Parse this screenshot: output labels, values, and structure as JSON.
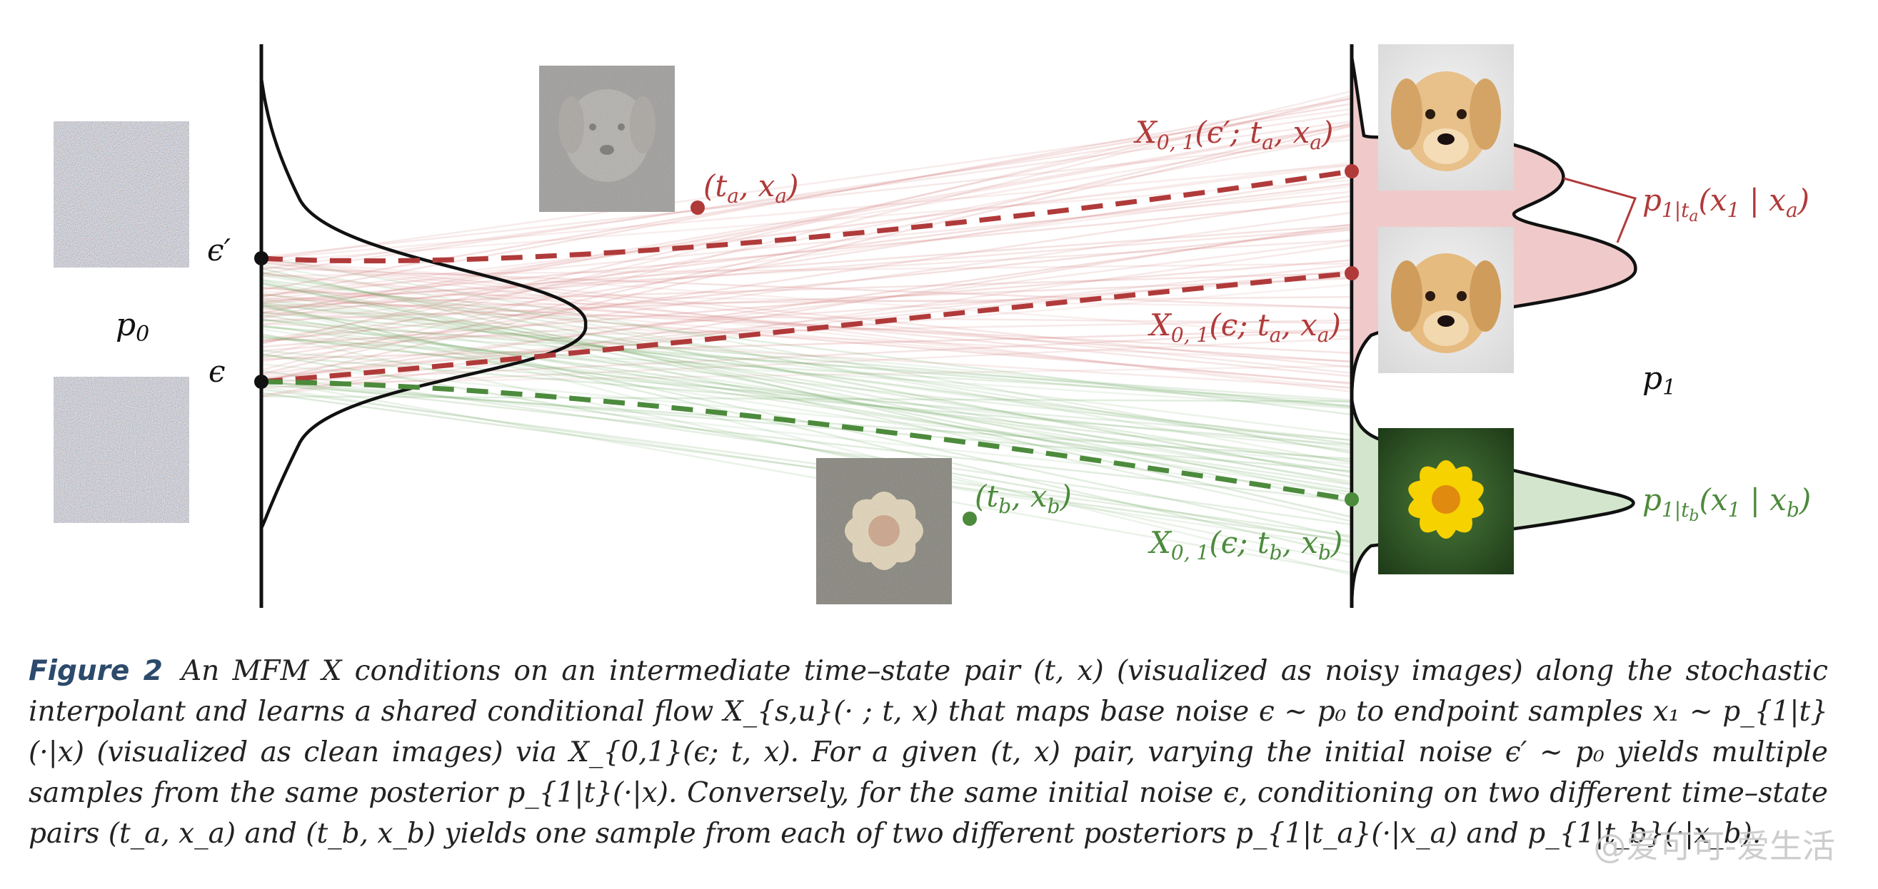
{
  "figure": {
    "labels": {
      "p0": "p",
      "p0_sub": "0",
      "p1": "p",
      "p1_sub": "1",
      "eps_prime": "ϵ′",
      "eps": "ϵ",
      "ta_xa": "(t",
      "tb_xb": "(t",
      "x_upper": "X",
      "x_middle": "X",
      "x_lower": "X",
      "posterior_a": "p",
      "posterior_b": "p"
    },
    "label_texts": {
      "ta_point": [
        "(t",
        "a",
        ", x",
        "a",
        ")"
      ],
      "tb_point": [
        "(t",
        "b",
        ", x",
        "b",
        ")"
      ],
      "x_upper": [
        "X",
        "0, 1",
        "(ϵ′; t",
        "a",
        ", x",
        "a",
        ")"
      ],
      "x_middle": [
        "X",
        "0, 1",
        "(ϵ; t",
        "a",
        ", x",
        "a",
        ")"
      ],
      "x_lower": [
        "X",
        "0, 1",
        "(ϵ; t",
        "b",
        ", x",
        "b",
        ")"
      ],
      "posterior_a": [
        "p",
        "1|t",
        "a",
        "(x",
        "1",
        " | x",
        "a",
        ")"
      ],
      "posterior_b": [
        "p",
        "1|t",
        "b",
        "(x",
        "1",
        " | x",
        "b",
        ")"
      ]
    },
    "colors": {
      "red": "#b03a3a",
      "green": "#4c8a3c",
      "red_fill": "#f0caca",
      "green_fill": "#d3e6cd",
      "axis": "#111111"
    },
    "icons": [
      "noise-image",
      "noisy-dog-image",
      "noisy-flower-image",
      "dog-image",
      "flower-image"
    ]
  },
  "caption": {
    "title": "Figure 2",
    "text": "An MFM X conditions on an intermediate time–state pair (t, x) (visualized as noisy images) along the stochastic interpolant and learns a shared conditional flow X_{s,u}(· ; t, x) that maps base noise ϵ ∼ p₀ to endpoint samples x₁ ∼ p_{1|t}(·|x) (visualized as clean images) via X_{0,1}(ϵ; t, x). For a given (t, x) pair, varying the initial noise ϵ′ ∼ p₀ yields multiple samples from the same posterior p_{1|t}(·|x). Conversely, for the same initial noise ϵ, conditioning on two different time–state pairs (t_a, x_a) and (t_b, x_b) yields one sample from each of two different posteriors p_{1|t_a}(·|x_a) and p_{1|t_b}(·|x_b)."
  },
  "watermark": "@爱可可-爱生活"
}
